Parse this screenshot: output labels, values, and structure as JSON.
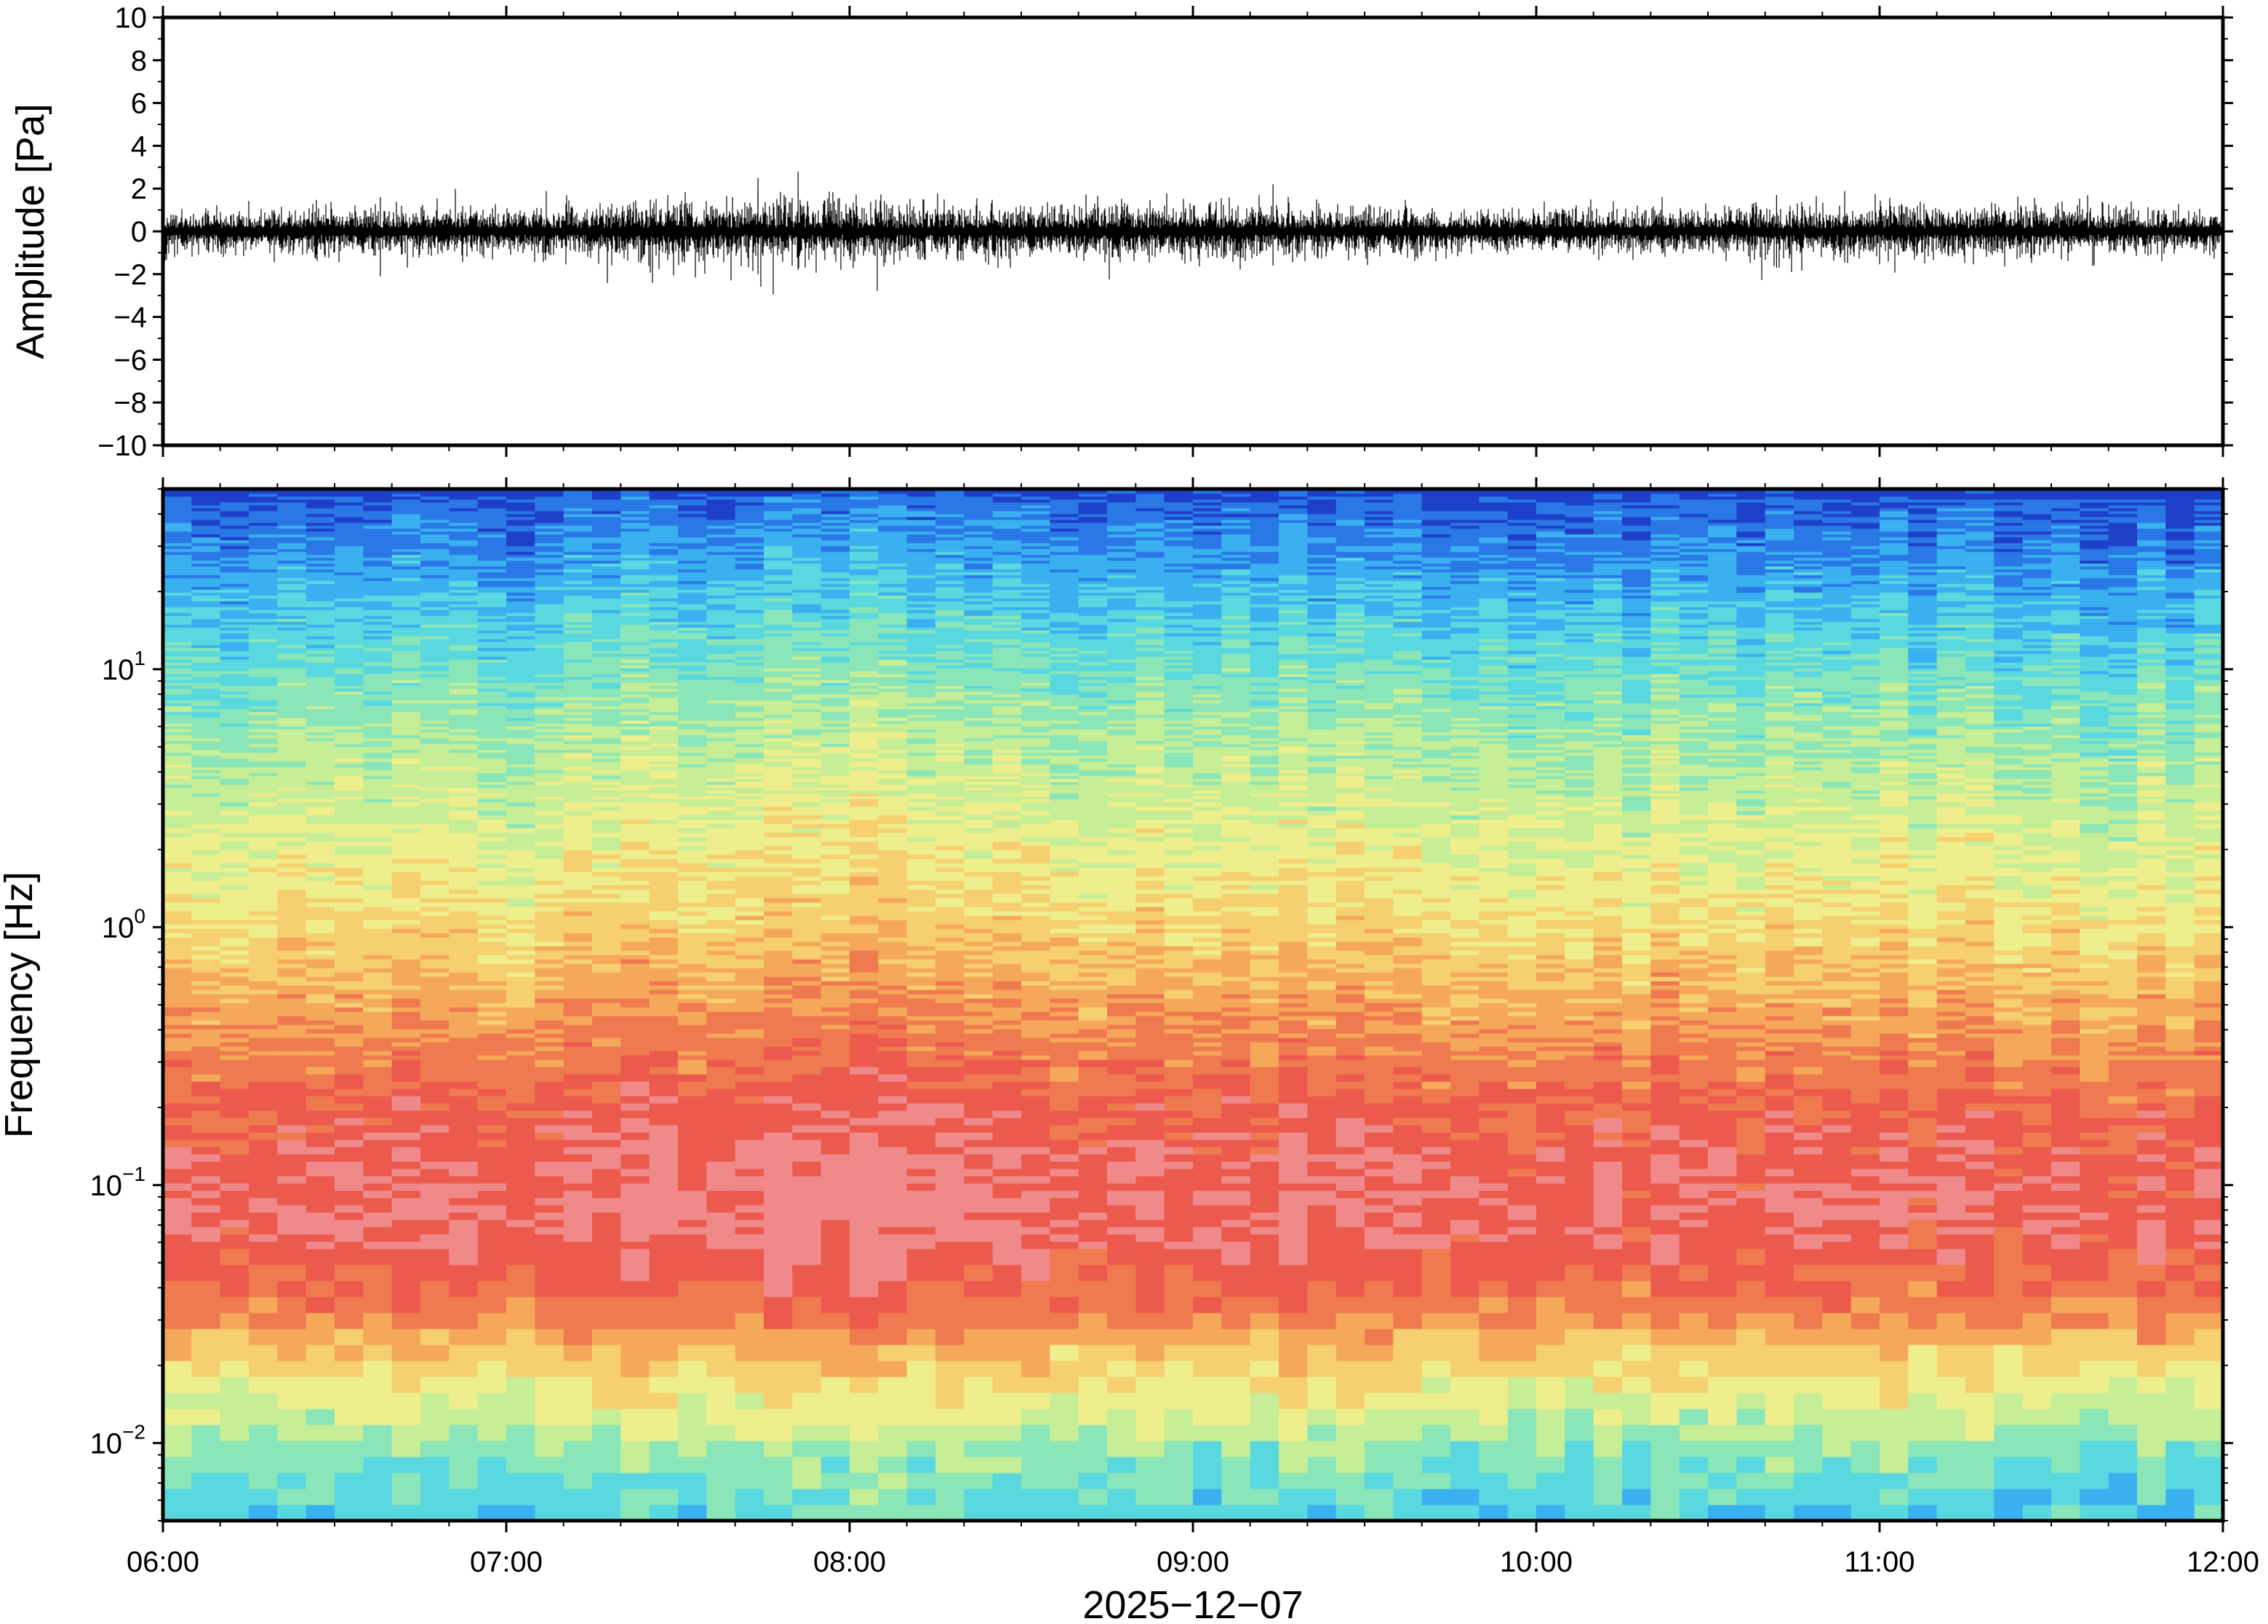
{
  "chart_data": [
    {
      "type": "line",
      "panel": "waveform",
      "ylabel": "Amplitude [Pa]",
      "ylim": [
        -10,
        10
      ],
      "yticks": [
        "10",
        "8",
        "6",
        "4",
        "2",
        "0",
        "−2",
        "−4",
        "−6",
        "−8",
        "−10"
      ],
      "ytick_values": [
        10,
        8,
        6,
        4,
        2,
        0,
        -2,
        -4,
        -6,
        -8,
        -10
      ],
      "series_color": "#000000",
      "envelope": {
        "t": [
          "06:00",
          "06:30",
          "07:00",
          "07:30",
          "08:00",
          "08:30",
          "09:00",
          "09:30",
          "10:00",
          "10:30",
          "11:00",
          "11:30",
          "12:00"
        ],
        "amplitude": [
          0.7,
          0.9,
          0.9,
          1.3,
          1.2,
          1.0,
          1.1,
          0.9,
          0.8,
          0.9,
          1.1,
          0.9,
          0.7
        ]
      },
      "peaks": [
        {
          "t": "06:38",
          "max": 1.6,
          "min": -2.1
        },
        {
          "t": "07:44",
          "max": 2.5,
          "min": -2.0
        },
        {
          "t": "07:51",
          "max": 2.8,
          "min": -1.8
        },
        {
          "t": "09:14",
          "max": 2.2,
          "min": -1.6
        },
        {
          "t": "10:42",
          "max": 1.7,
          "min": -1.7
        }
      ]
    },
    {
      "type": "heatmap",
      "panel": "spectrogram",
      "ylabel": "Frequency [Hz]",
      "yscale": "log",
      "ylim": [
        0.005,
        50
      ],
      "yticks": [
        {
          "base": "10",
          "exp": "1",
          "value": 10
        },
        {
          "base": "10",
          "exp": "0",
          "value": 1
        },
        {
          "base": "10",
          "exp": "−1",
          "value": 0.1
        },
        {
          "base": "10",
          "exp": "−2",
          "value": 0.01
        }
      ],
      "colormap": [
        "#1e3fc8",
        "#2a78e6",
        "#3ab0f0",
        "#5ad8e0",
        "#8ae6b8",
        "#c6ee96",
        "#eeee8c",
        "#f6d070",
        "#f6a85a",
        "#f07a50",
        "#ec5a4e",
        "#f08a8a"
      ],
      "power_profile": {
        "frequency_hz": [
          0.005,
          0.008,
          0.012,
          0.02,
          0.03,
          0.05,
          0.08,
          0.12,
          0.2,
          0.3,
          0.5,
          0.8,
          1.2,
          2,
          3,
          5,
          8,
          12,
          20,
          30,
          45,
          50
        ],
        "relative_power": [
          0.28,
          0.35,
          0.48,
          0.62,
          0.78,
          0.88,
          0.92,
          0.9,
          0.84,
          0.78,
          0.7,
          0.63,
          0.57,
          0.52,
          0.47,
          0.42,
          0.36,
          0.3,
          0.22,
          0.15,
          0.08,
          0.0
        ]
      },
      "time_activity": {
        "t": [
          "06:00",
          "06:30",
          "07:00",
          "07:30",
          "08:00",
          "08:30",
          "09:00",
          "09:30",
          "10:00",
          "10:30",
          "11:00",
          "11:30",
          "12:00"
        ],
        "offset": [
          -0.03,
          0.0,
          0.0,
          0.04,
          0.05,
          0.02,
          0.03,
          0.0,
          -0.02,
          0.0,
          0.01,
          -0.01,
          -0.02
        ]
      }
    }
  ],
  "shared_x": {
    "type": "time",
    "xlim": [
      "06:00",
      "12:00"
    ],
    "tick_labels": [
      "06:00",
      "07:00",
      "08:00",
      "09:00",
      "10:00",
      "11:00",
      "12:00"
    ],
    "xlabel": "2025−12−07"
  }
}
